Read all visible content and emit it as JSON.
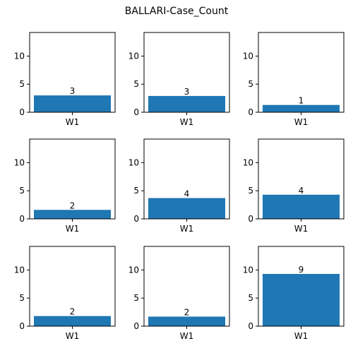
{
  "chart_data": {
    "title": "BALLARI-Case_Count",
    "type": "bar",
    "layout": "3x3 grid of subplots",
    "bar_color": "#1f77b4",
    "ylim": [
      0,
      14.2
    ],
    "yticks": [
      0,
      5,
      10
    ],
    "subplots": [
      {
        "categories": [
          "W1"
        ],
        "values": [
          3.0
        ],
        "label": "3"
      },
      {
        "categories": [
          "W1"
        ],
        "values": [
          2.9
        ],
        "label": "3"
      },
      {
        "categories": [
          "W1"
        ],
        "values": [
          1.3
        ],
        "label": "1"
      },
      {
        "categories": [
          "W1"
        ],
        "values": [
          1.6
        ],
        "label": "2"
      },
      {
        "categories": [
          "W1"
        ],
        "values": [
          3.7
        ],
        "label": "4"
      },
      {
        "categories": [
          "W1"
        ],
        "values": [
          4.3
        ],
        "label": "4"
      },
      {
        "categories": [
          "W1"
        ],
        "values": [
          1.8
        ],
        "label": "2"
      },
      {
        "categories": [
          "W1"
        ],
        "values": [
          1.7
        ],
        "label": "2"
      },
      {
        "categories": [
          "W1"
        ],
        "values": [
          9.3
        ],
        "label": "9"
      }
    ]
  }
}
